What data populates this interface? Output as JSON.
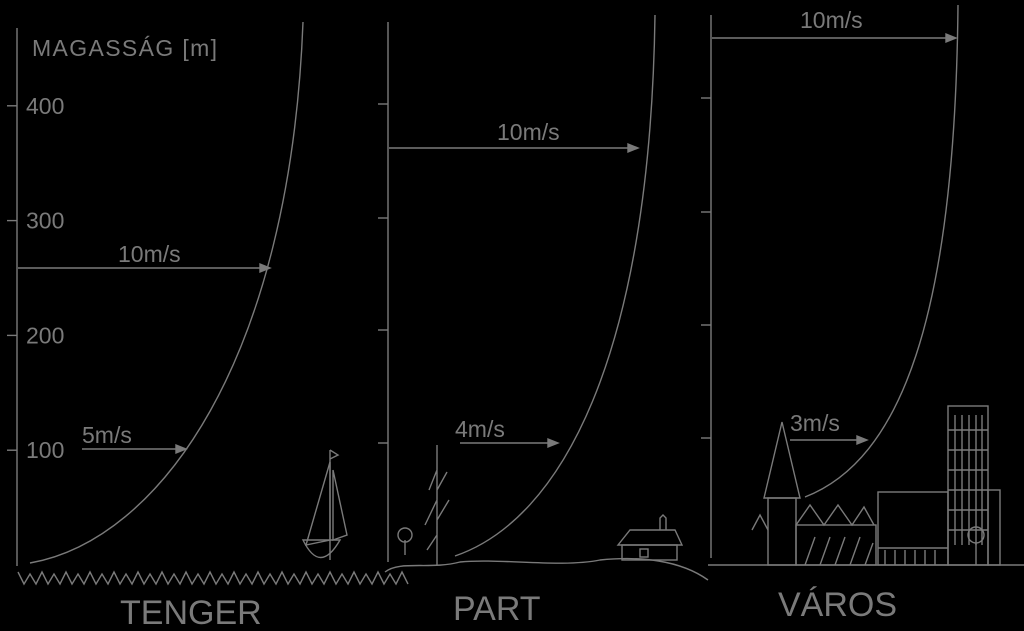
{
  "axis": {
    "title": "MAGASSÁG [m]",
    "ticks": [
      400,
      300,
      200,
      100
    ]
  },
  "panels": [
    {
      "label": "TENGER",
      "arrows": [
        "10m/s",
        "5m/s"
      ]
    },
    {
      "label": "PART",
      "arrows": [
        "10m/s",
        "4m/s"
      ]
    },
    {
      "label": "VÁROS",
      "arrows": [
        "10m/s",
        "3m/s"
      ]
    }
  ]
}
